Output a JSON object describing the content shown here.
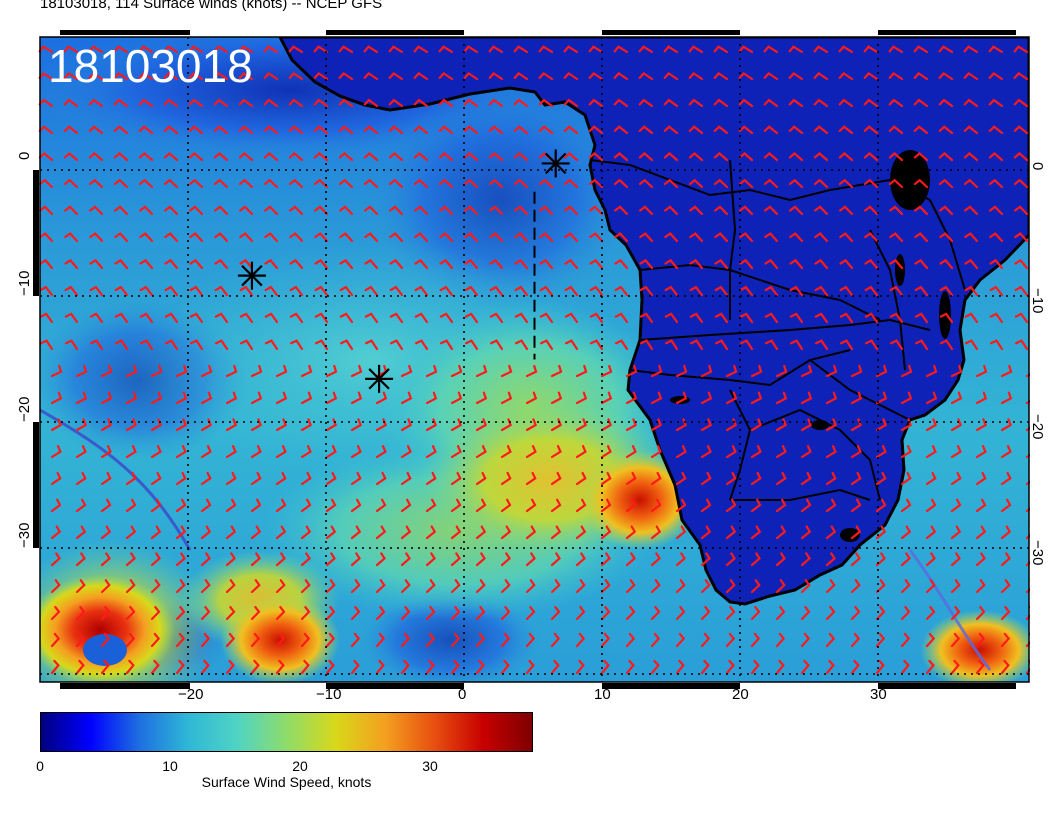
{
  "title": "18103018, 114 Surface winds (knots) -- NCEP GFS",
  "stamp": "18103018",
  "axes": {
    "x_ticks": [
      "−20",
      "−10",
      "0",
      "10",
      "20",
      "30"
    ],
    "y_ticks_left": [
      "0",
      "−10",
      "−20",
      "−30"
    ],
    "y_ticks_right": [
      "0",
      "−10",
      "−20",
      "−30"
    ],
    "lon_range": [
      -30,
      40
    ],
    "lat_range": [
      -40,
      10
    ]
  },
  "markers": [
    {
      "lon": 6.5,
      "lat": 0.2
    },
    {
      "lon": -15,
      "lat": -8.5
    },
    {
      "lon": -6,
      "lat": -16.5
    }
  ],
  "track": {
    "lon": [
      5,
      5
    ],
    "lat": [
      -2,
      -15
    ]
  },
  "colorbar": {
    "label": "Surface Wind Speed, knots",
    "ticks": [
      "0",
      "10",
      "20",
      "30"
    ],
    "range": [
      0,
      38
    ],
    "colors": [
      "#00007f",
      "#0000ff",
      "#1e6fe0",
      "#2fb7d6",
      "#4fd4c4",
      "#8edc6a",
      "#d8d81a",
      "#f4a020",
      "#e85010",
      "#c80000",
      "#7f0000"
    ]
  },
  "map_colors": {
    "land": "#0e22b8",
    "ocean_base": "#2aa2d8",
    "barb": "#ff1a1a",
    "coast": "#000000"
  }
}
